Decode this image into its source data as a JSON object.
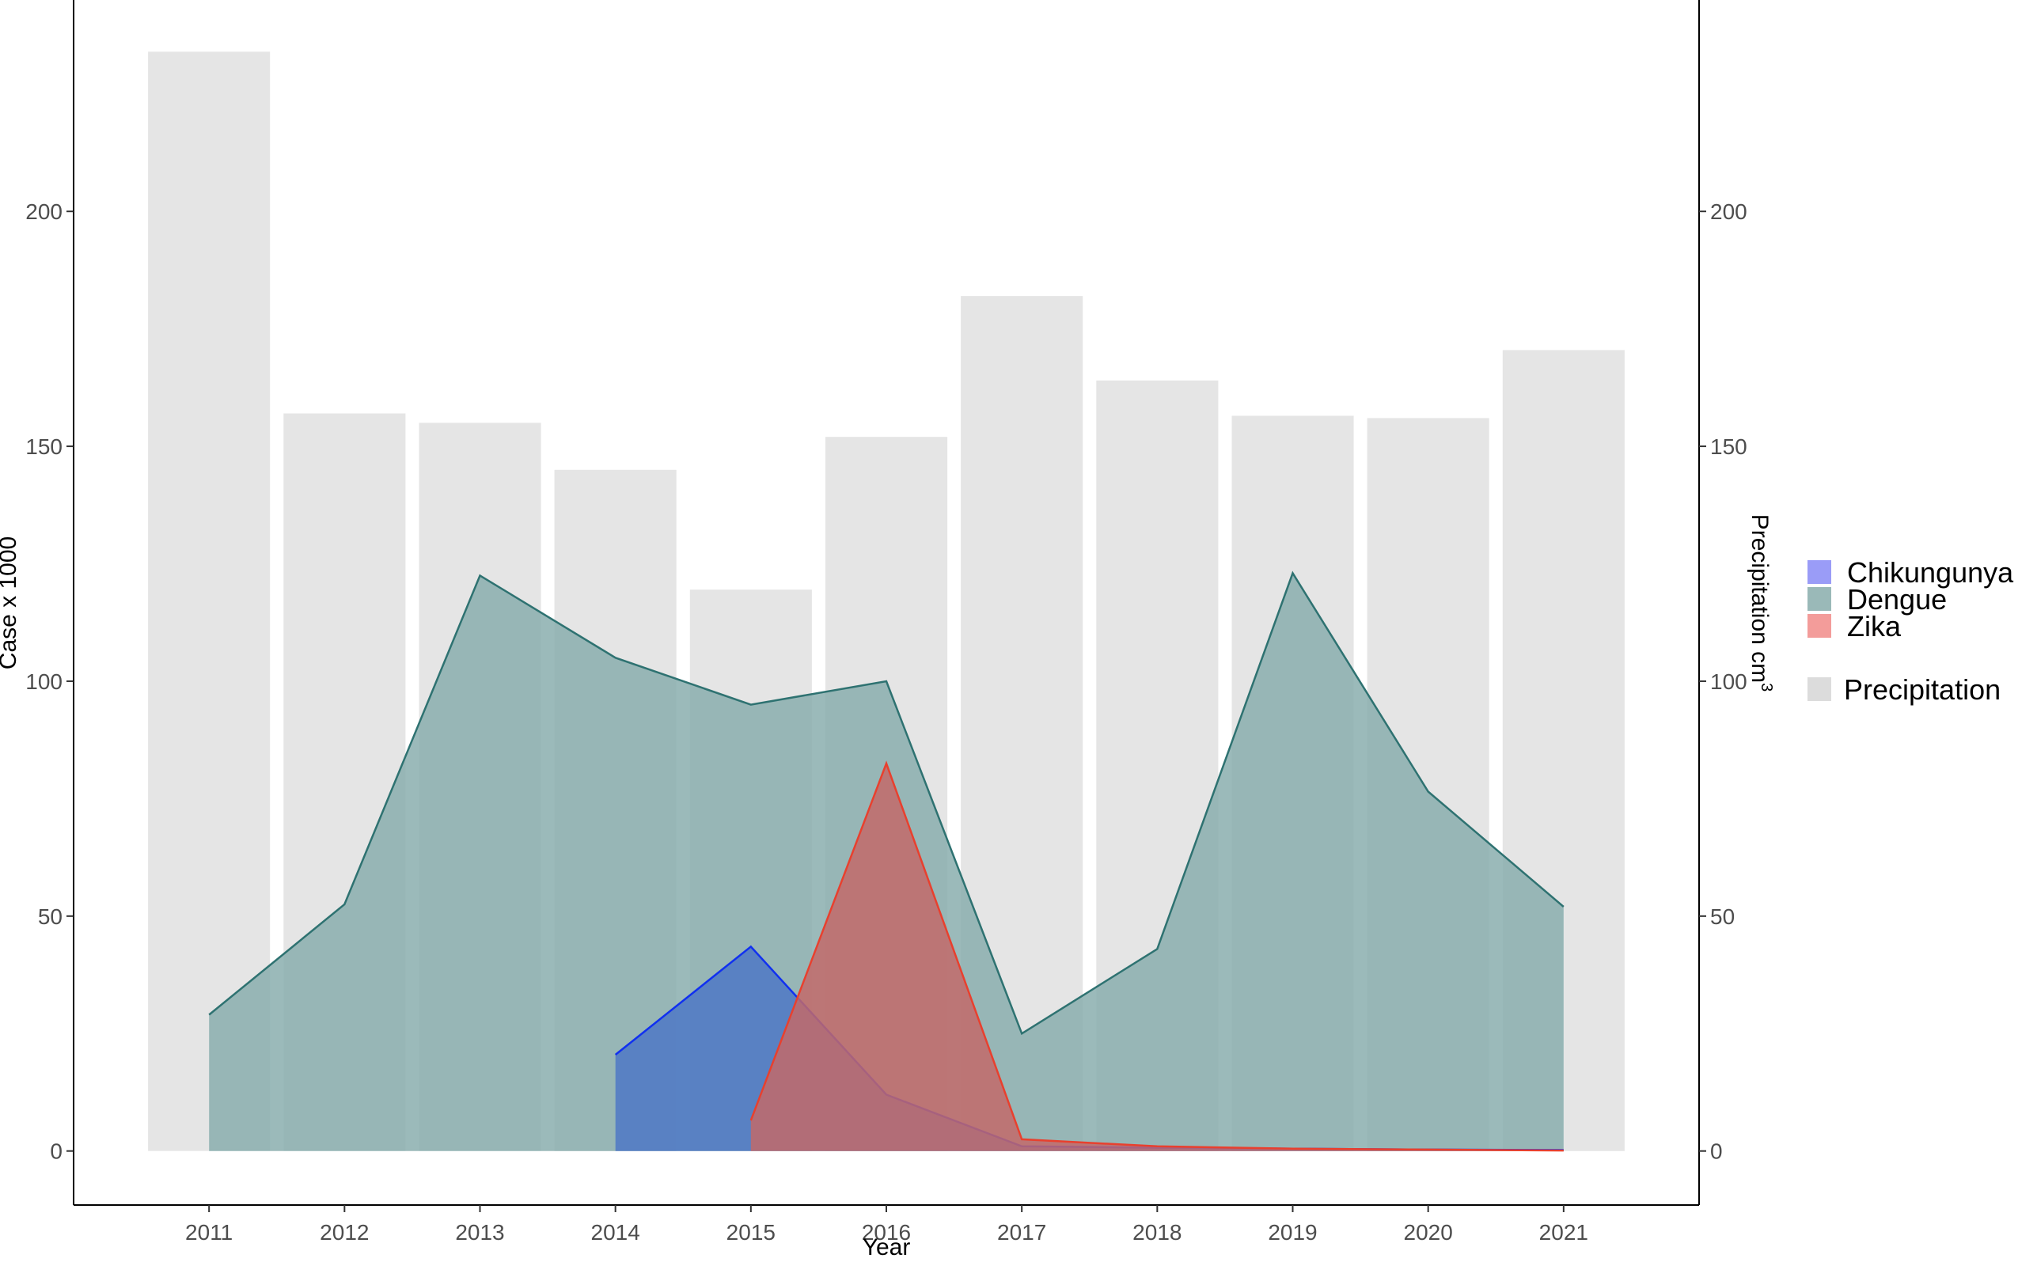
{
  "chart_data": {
    "type": "area",
    "xlabel": "Year",
    "ylabel": "Case x 1000",
    "ylabel_right": "Precipitation cm",
    "ylabel_right_sup": "3",
    "x": [
      2011,
      2012,
      2013,
      2014,
      2015,
      2016,
      2017,
      2018,
      2019,
      2020,
      2021
    ],
    "x_tick_labels": [
      "2011",
      "2012",
      "2013",
      "2014",
      "2015",
      "2016",
      "2017",
      "2018",
      "2019",
      "2020",
      "2021"
    ],
    "y_ticks": [
      0,
      50,
      100,
      150,
      200
    ],
    "y_tick_labels": [
      "0",
      "50",
      "100",
      "150",
      "200"
    ],
    "ylim": [
      -11.5,
      245
    ],
    "xlim": [
      2010.0,
      2022.0
    ],
    "grid": false,
    "legend_position": "right",
    "bars": {
      "name": "Precipitation",
      "color": "#e5e5e5",
      "values": [
        234,
        157,
        155,
        145,
        119.5,
        152,
        182,
        164,
        156.5,
        156,
        170.5
      ]
    },
    "series": [
      {
        "name": "Dengue",
        "fill": "#8aaeae",
        "line": "#2e7271",
        "x": [
          2011,
          2012,
          2013,
          2014,
          2015,
          2016,
          2017,
          2018,
          2019,
          2020,
          2021
        ],
        "values": [
          29,
          52.5,
          122.5,
          105,
          95,
          100,
          25,
          43,
          123,
          76.5,
          52
        ]
      },
      {
        "name": "Chikungunya",
        "fill": "#4e78c6",
        "line": "#1030f0",
        "x": [
          2014,
          2015,
          2016,
          2017,
          2018,
          2019,
          2020,
          2021
        ],
        "values": [
          20.5,
          43.5,
          12,
          1,
          0.7,
          0.5,
          0.3,
          0.2
        ]
      },
      {
        "name": "Zika",
        "fill": "#c26a6a",
        "line": "#e8402e",
        "x": [
          2015,
          2016,
          2017,
          2018,
          2019,
          2020,
          2021
        ],
        "values": [
          6.5,
          82.5,
          2.5,
          1,
          0.5,
          0.3,
          0.1
        ]
      }
    ],
    "legend": [
      {
        "label": "Chikungunya",
        "color": "#9a9cf7"
      },
      {
        "label": "Dengue",
        "color": "#9ab9b8"
      },
      {
        "label": "Zika",
        "color": "#f39c9a"
      },
      {
        "label": "Precipitation",
        "color": "#dcdcdc"
      }
    ]
  }
}
